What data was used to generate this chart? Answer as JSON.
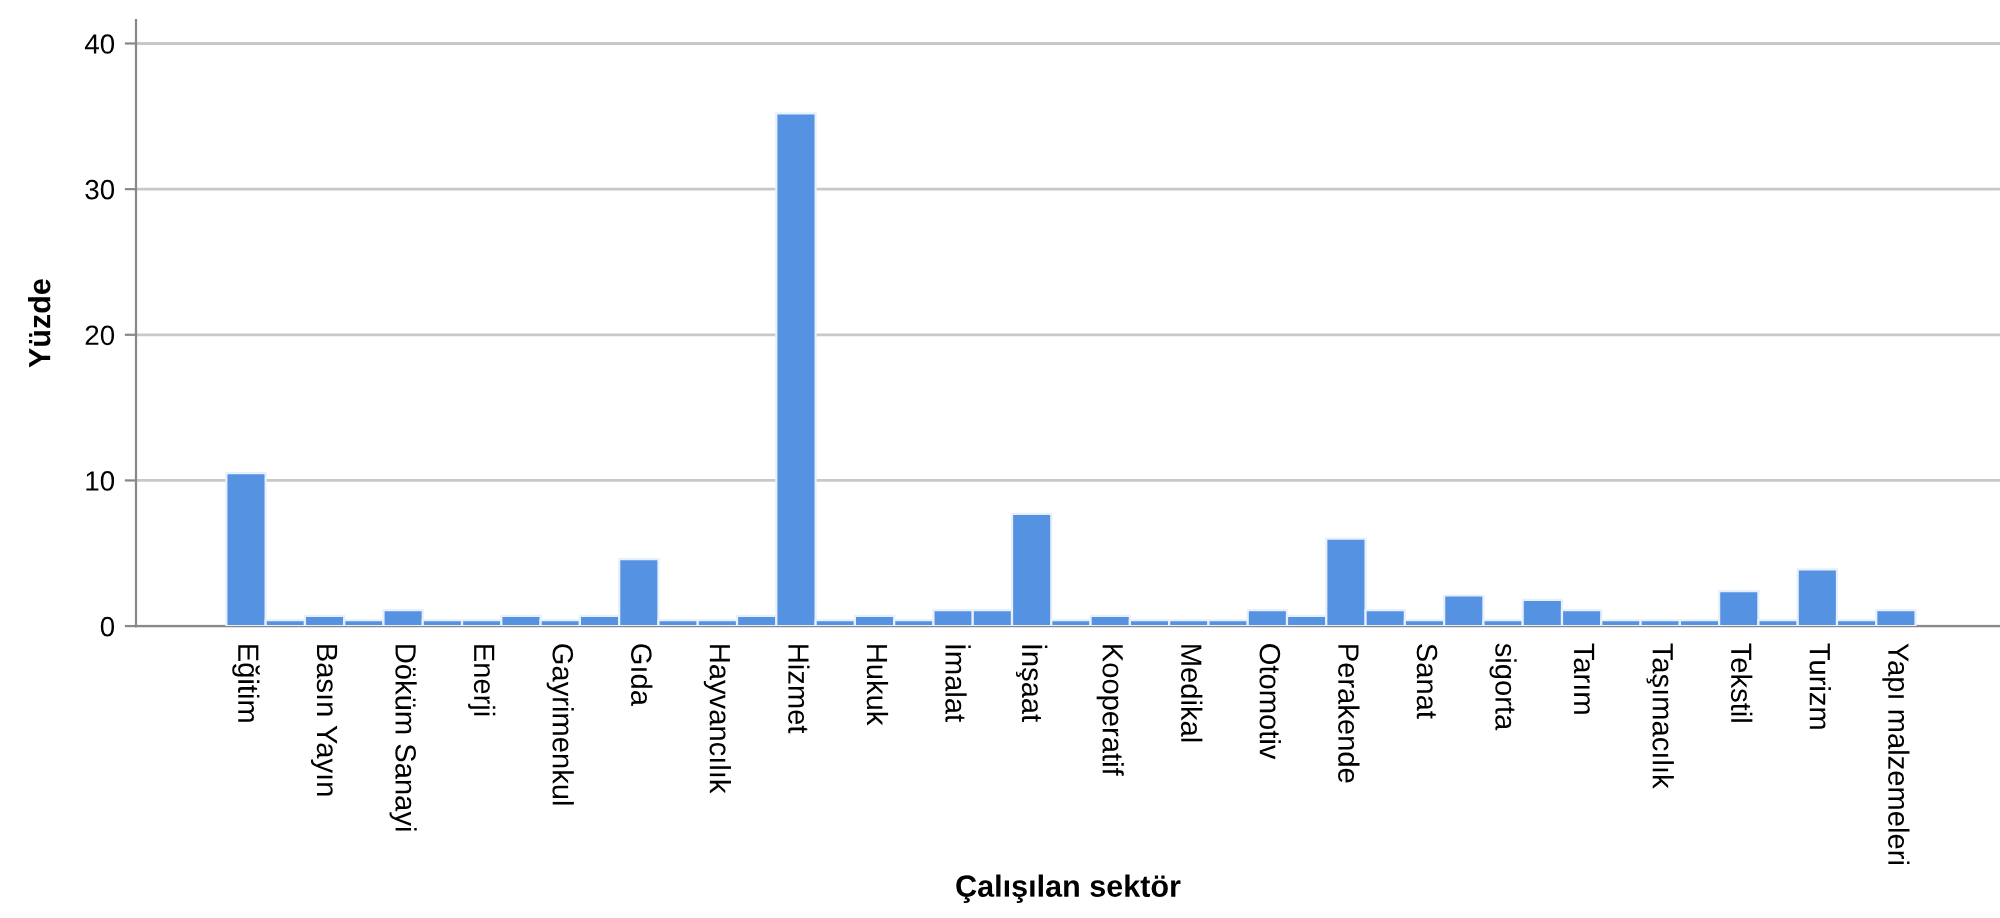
{
  "chart_data": {
    "type": "bar",
    "xlabel": "Çalışılan sektör",
    "ylabel": "Yüzde",
    "categories": [
      "Eğitim",
      null,
      "Basın Yayın",
      null,
      "Döküm Sanayi",
      null,
      "Enerji",
      null,
      "Gayrimenkul",
      null,
      "Gıda",
      null,
      "Hayvancılık",
      null,
      "Hizmet",
      null,
      "Hukuk",
      null,
      "İmalat",
      null,
      "İnşaat",
      null,
      "Kooperatif",
      null,
      "Medikal",
      null,
      "Otomotiv",
      null,
      "Perakende",
      null,
      "Sanat",
      null,
      "sigorta",
      null,
      "Tarım",
      null,
      "Taşımacılık",
      null,
      "Tekstil",
      null,
      "Turizm",
      null,
      "Yapı malzemeleri"
    ],
    "values": [
      10.5,
      0.4,
      0.7,
      0.4,
      1.1,
      0.4,
      0.4,
      0.7,
      0.4,
      0.7,
      4.6,
      0.4,
      0.4,
      0.7,
      35.2,
      0.4,
      0.7,
      0.4,
      1.1,
      1.1,
      7.7,
      0.4,
      0.7,
      0.4,
      0.4,
      0.4,
      1.1,
      0.7,
      6.0,
      1.1,
      0.4,
      2.1,
      0.4,
      1.8,
      1.1,
      0.4,
      0.4,
      0.4,
      2.4,
      0.4,
      3.9,
      0.4,
      1.1
    ],
    "color": "#5592e2",
    "ylim": [
      0,
      41.6
    ],
    "yticks": [
      0,
      10,
      20,
      30,
      40
    ],
    "grid": "y"
  }
}
